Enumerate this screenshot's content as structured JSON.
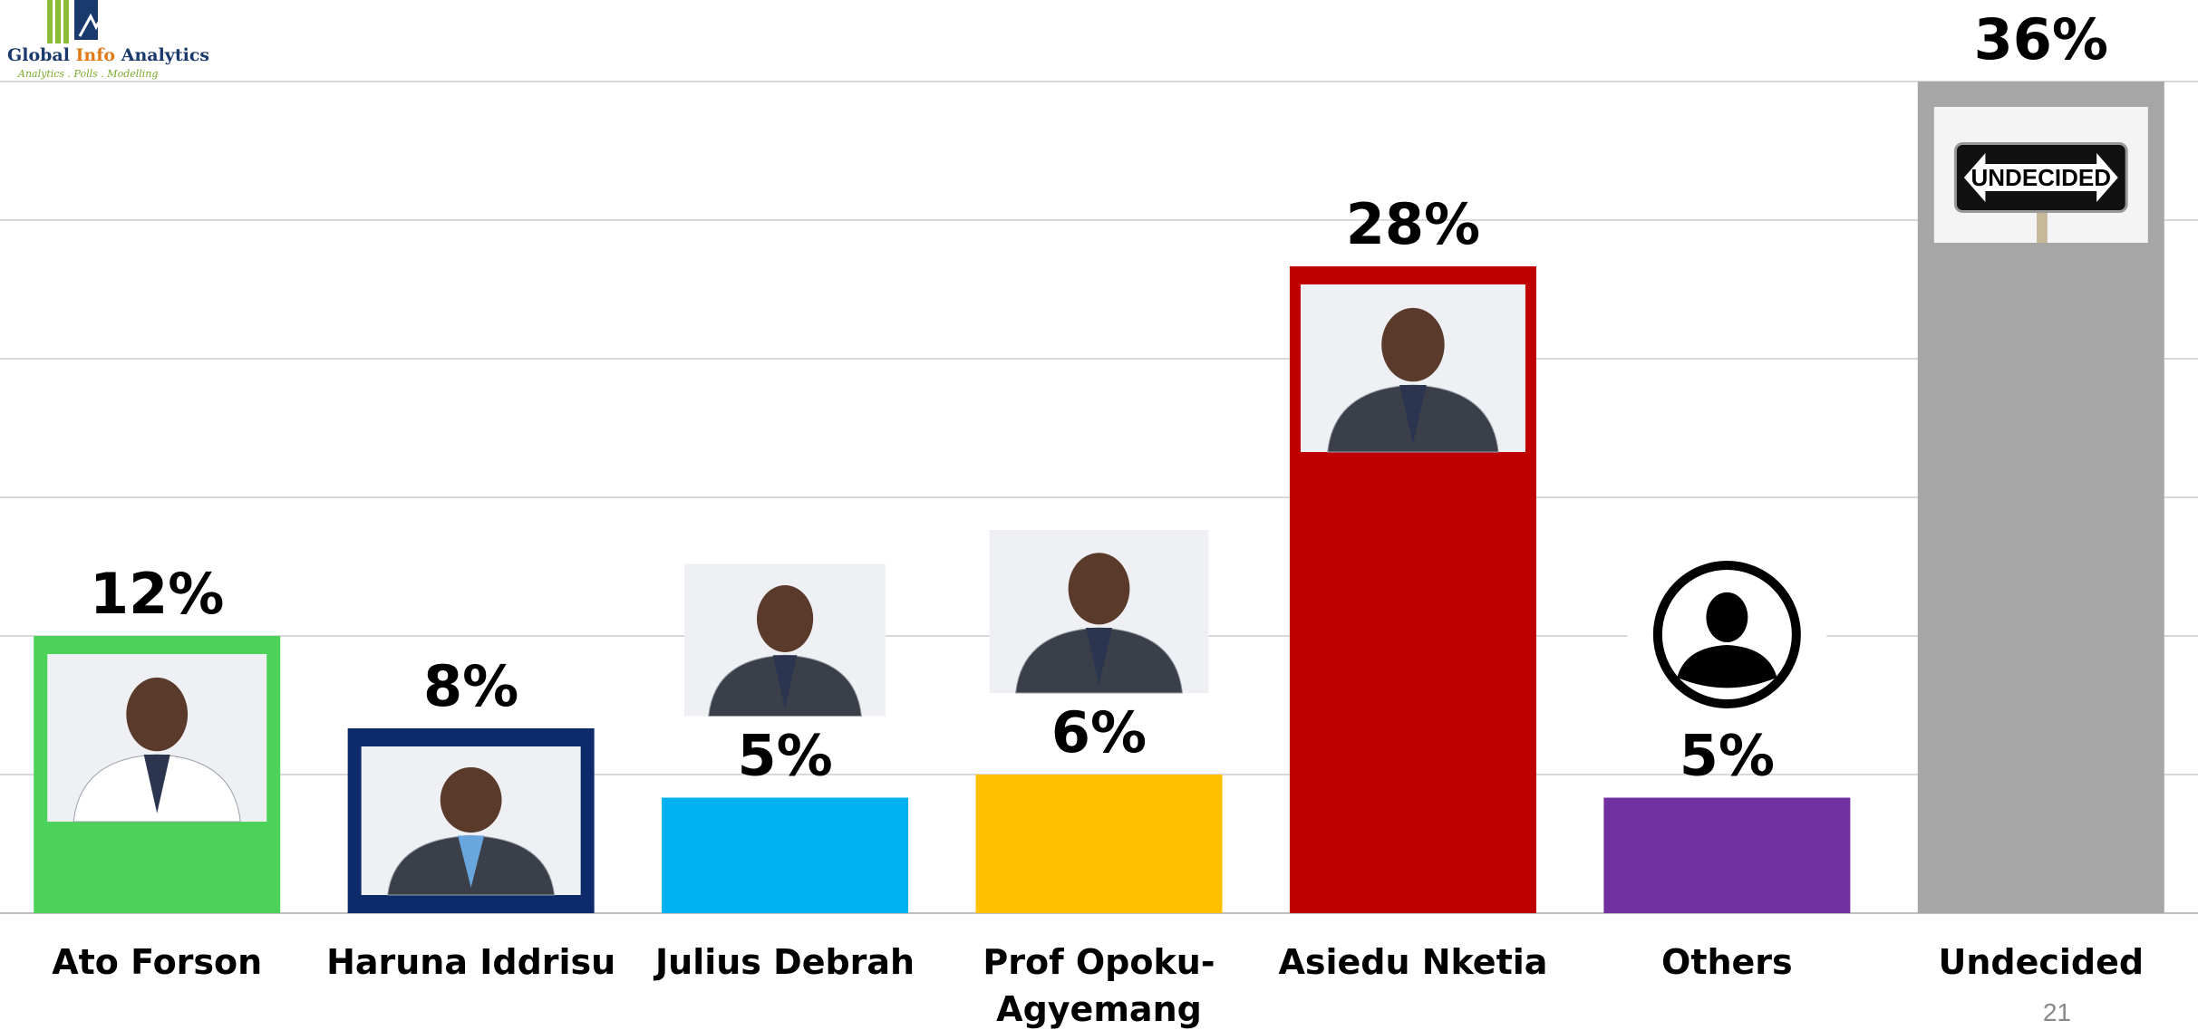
{
  "logo": {
    "name_part1": "Global ",
    "name_part2": "Info",
    "name_part3": " Analytics",
    "tagline": "Analytics . Polls . Modelling"
  },
  "page_number": "21",
  "colors": {
    "gridline": "#d9d9d9",
    "baseline": "#bfbfbf",
    "label_text": "#000000"
  },
  "chart_data": {
    "type": "bar",
    "title": "",
    "xlabel": "",
    "ylabel": "",
    "ylim": [
      0,
      36
    ],
    "grid": true,
    "legend": "none",
    "categories": [
      "Ato Forson",
      "Haruna Iddrisu",
      "Julius Debrah",
      "Prof Opoku-\nAgyemang",
      "Asiedu Nketia",
      "Others",
      "Undecided"
    ],
    "values": [
      12,
      8,
      5,
      6,
      28,
      5,
      36
    ],
    "data_labels": [
      "12%",
      "8%",
      "5%",
      "6%",
      "28%",
      "5%",
      "36%"
    ],
    "bar_colors": [
      "#4cd159",
      "#0d2b6b",
      "#00b0f0",
      "#ffc000",
      "#c00000",
      "#7030a0",
      "#a6a6a6"
    ],
    "images": [
      "portrait-photo",
      "portrait-photo",
      "portrait-photo",
      "portrait-photo",
      "portrait-photo",
      "person-silhouette-icon",
      "undecided-sign-image"
    ]
  }
}
